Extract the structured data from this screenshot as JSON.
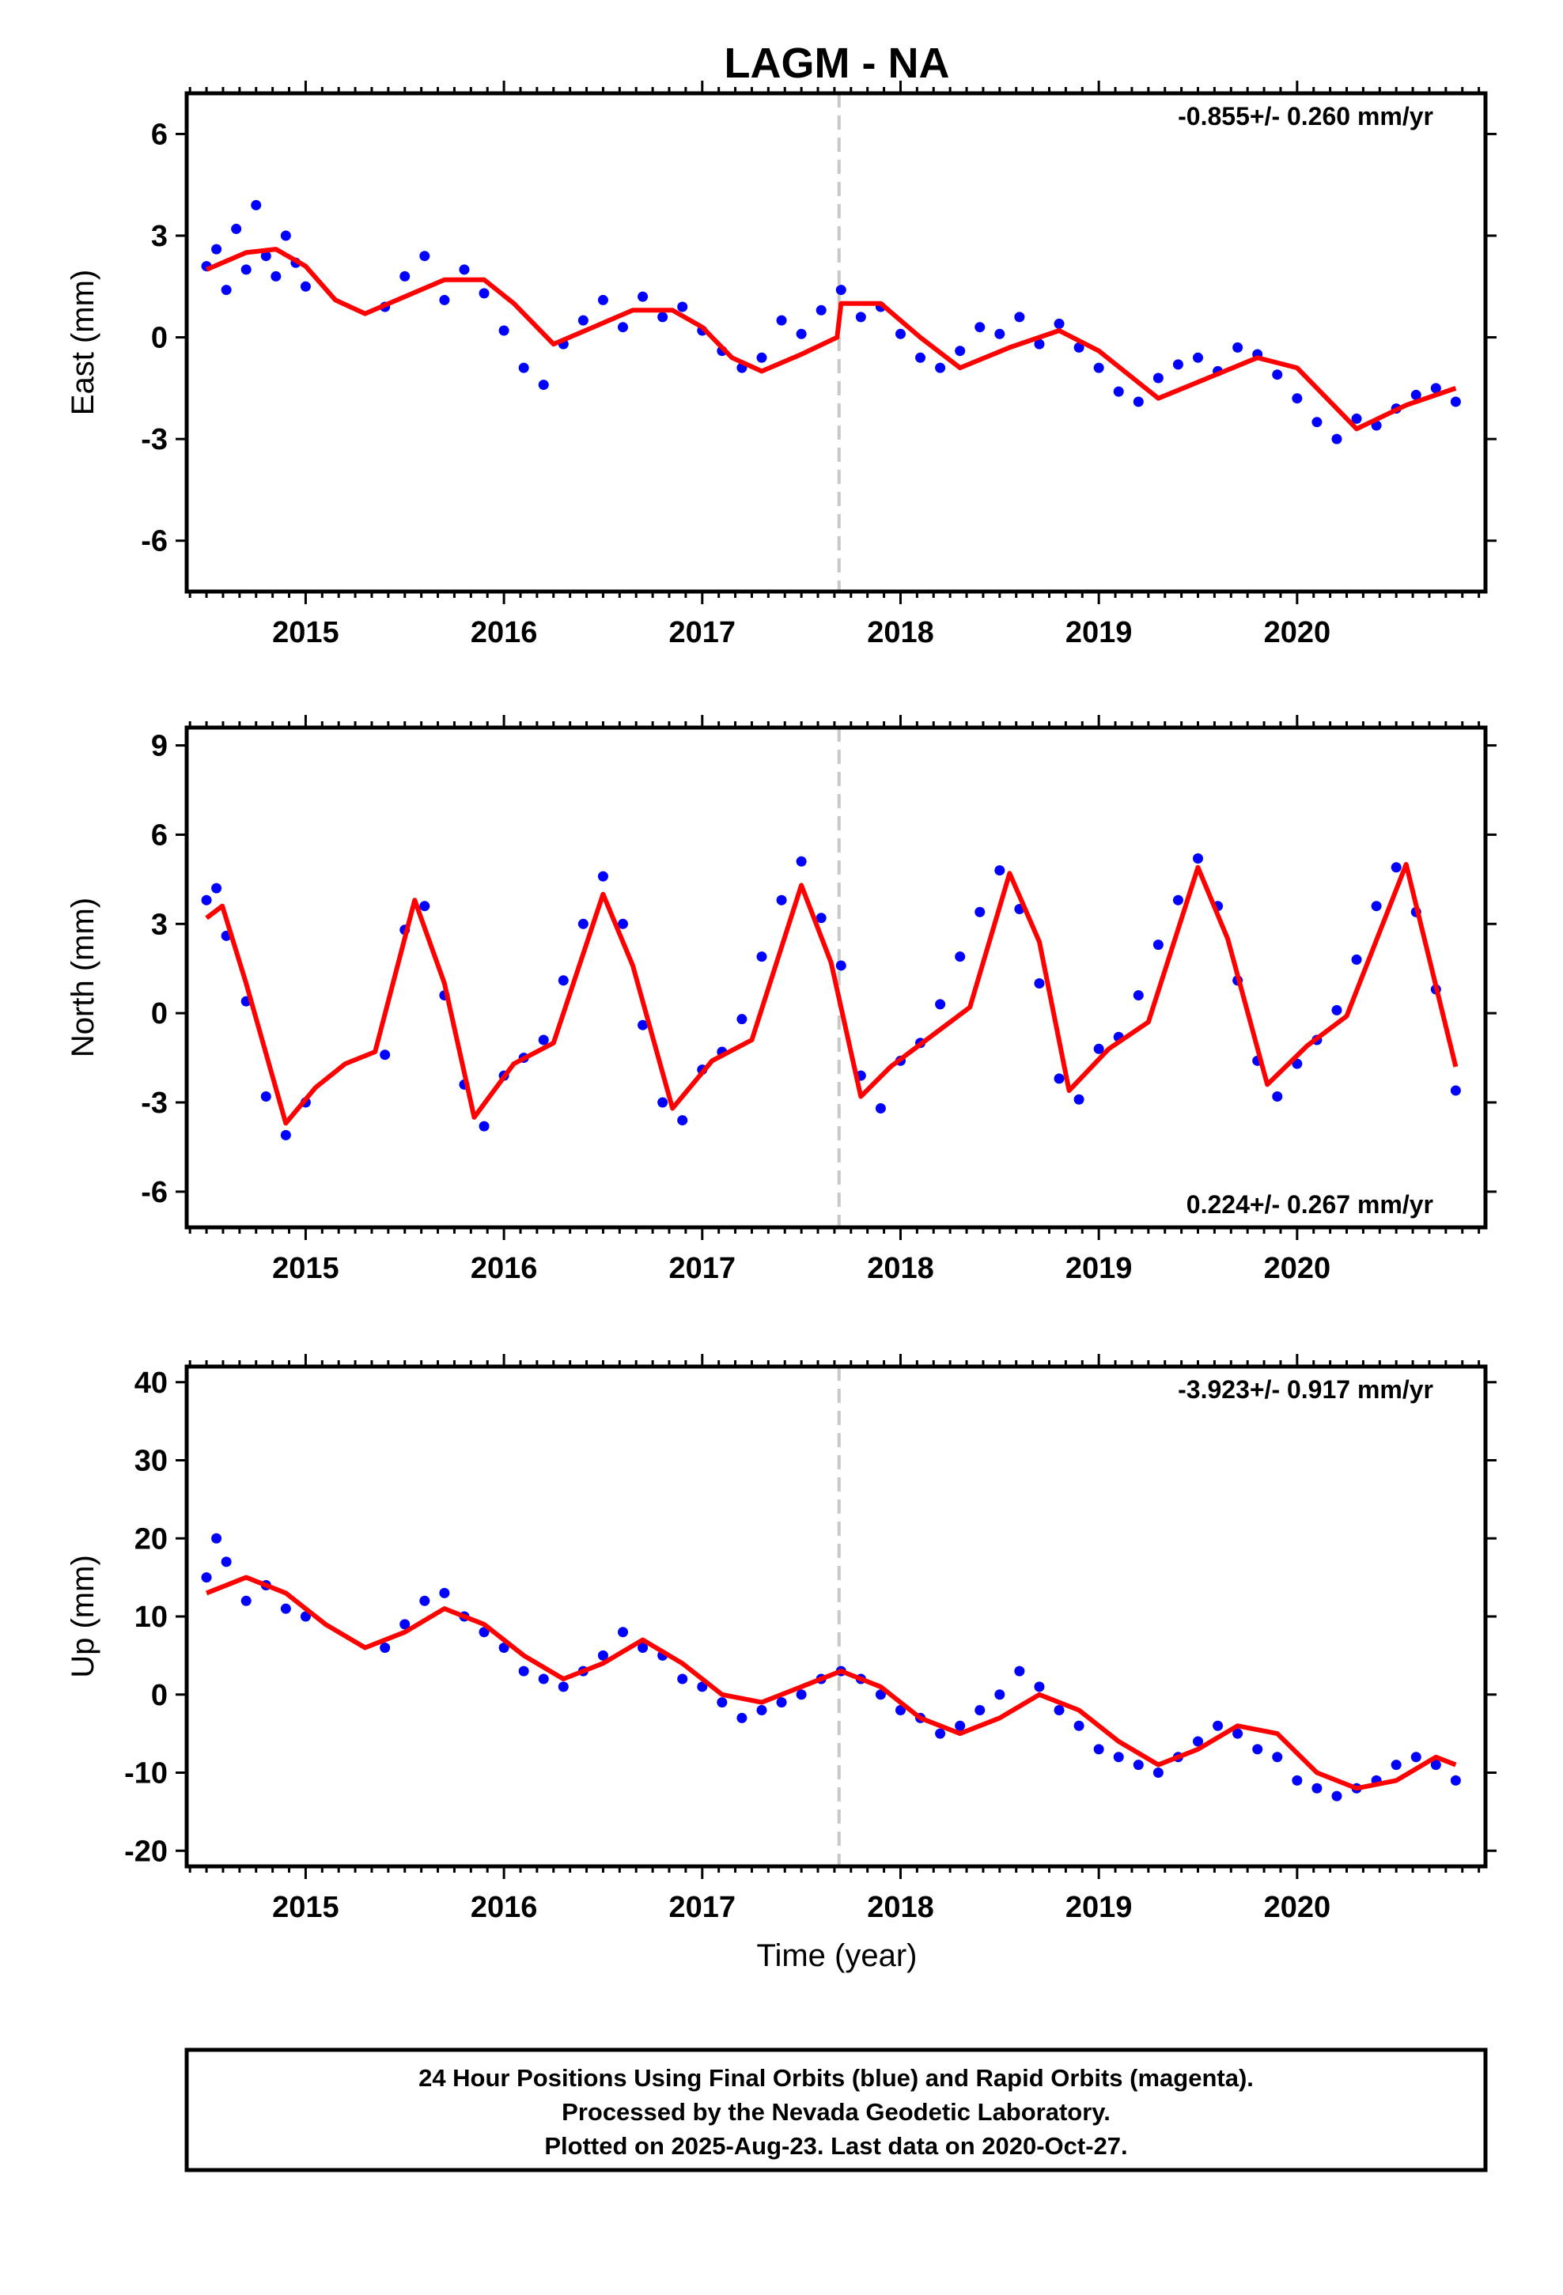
{
  "title": "LAGM - NA",
  "x_axis_label": "Time (year)",
  "footer": {
    "line1": "24 Hour Positions Using Final Orbits (blue) and Rapid Orbits (magenta).",
    "line2": "Processed by the Nevada Geodetic Laboratory.",
    "line3": "Plotted on 2025-Aug-23. Last data on 2020-Oct-27."
  },
  "colors": {
    "points": "#0000ff",
    "fit": "#ff0000",
    "equipment_change": "#c8c8c8",
    "frame": "#000000"
  },
  "chart_data": [
    {
      "type": "scatter",
      "component": "east",
      "ylabel": "East (mm)",
      "rate_label": "-0.855+/- 0.260 mm/yr",
      "xlim": [
        2014.4,
        2020.95
      ],
      "ylim": [
        -7.5,
        7.2
      ],
      "yticks": [
        -6,
        -3,
        0,
        3,
        6
      ],
      "xticks": [
        2015,
        2016,
        2017,
        2018,
        2019,
        2020
      ],
      "equipment_change_year": 2017.69,
      "series": [
        {
          "kind": "daily_positions",
          "color": "#0000ff",
          "x": [
            2014.5,
            2014.55,
            2014.6,
            2014.65,
            2014.7,
            2014.75,
            2014.8,
            2014.85,
            2014.9,
            2014.95,
            2015.0,
            2015.4,
            2015.5,
            2015.6,
            2015.7,
            2015.8,
            2015.9,
            2016.0,
            2016.1,
            2016.2,
            2016.3,
            2016.4,
            2016.5,
            2016.6,
            2016.7,
            2016.8,
            2016.9,
            2017.0,
            2017.1,
            2017.2,
            2017.3,
            2017.4,
            2017.5,
            2017.6,
            2017.7,
            2017.8,
            2017.9,
            2018.0,
            2018.1,
            2018.2,
            2018.3,
            2018.4,
            2018.5,
            2018.6,
            2018.7,
            2018.8,
            2018.9,
            2019.0,
            2019.1,
            2019.2,
            2019.3,
            2019.4,
            2019.5,
            2019.6,
            2019.7,
            2019.8,
            2019.9,
            2020.0,
            2020.1,
            2020.2,
            2020.3,
            2020.4,
            2020.5,
            2020.6,
            2020.7,
            2020.8
          ],
          "y": [
            2.1,
            2.6,
            1.4,
            3.2,
            2.0,
            3.9,
            2.4,
            1.8,
            3.0,
            2.2,
            1.5,
            0.9,
            1.8,
            2.4,
            1.1,
            2.0,
            1.3,
            0.2,
            -0.9,
            -1.4,
            -0.2,
            0.5,
            1.1,
            0.3,
            1.2,
            0.6,
            0.9,
            0.2,
            -0.4,
            -0.9,
            -0.6,
            0.5,
            0.1,
            0.8,
            1.4,
            0.6,
            0.9,
            0.1,
            -0.6,
            -0.9,
            -0.4,
            0.3,
            0.1,
            0.6,
            -0.2,
            0.4,
            -0.3,
            -0.9,
            -1.6,
            -1.9,
            -1.2,
            -0.8,
            -0.6,
            -1.0,
            -0.3,
            -0.5,
            -1.1,
            -1.8,
            -2.5,
            -3.0,
            -2.4,
            -2.6,
            -2.1,
            -1.7,
            -1.5,
            -1.9
          ]
        },
        {
          "kind": "model_fit",
          "color": "#ff0000",
          "x": [
            2014.5,
            2014.7,
            2014.85,
            2015.0,
            2015.15,
            2015.3,
            2015.5,
            2015.7,
            2015.9,
            2016.05,
            2016.25,
            2016.45,
            2016.65,
            2016.85,
            2017.0,
            2017.15,
            2017.3,
            2017.5,
            2017.68,
            2017.7,
            2017.9,
            2018.1,
            2018.3,
            2018.55,
            2018.8,
            2019.0,
            2019.3,
            2019.55,
            2019.8,
            2020.0,
            2020.3,
            2020.55,
            2020.8
          ],
          "y": [
            2.0,
            2.5,
            2.6,
            2.1,
            1.1,
            0.7,
            1.2,
            1.7,
            1.7,
            1.0,
            -0.2,
            0.3,
            0.8,
            0.8,
            0.3,
            -0.6,
            -1.0,
            -0.5,
            0.0,
            1.0,
            1.0,
            0.0,
            -0.9,
            -0.3,
            0.2,
            -0.4,
            -1.8,
            -1.2,
            -0.6,
            -0.9,
            -2.7,
            -2.0,
            -1.5
          ]
        }
      ]
    },
    {
      "type": "scatter",
      "component": "north",
      "ylabel": "North (mm)",
      "rate_label": "0.224+/- 0.267 mm/yr",
      "xlim": [
        2014.4,
        2020.95
      ],
      "ylim": [
        -7.2,
        9.6
      ],
      "yticks": [
        -6,
        -3,
        0,
        3,
        6,
        9
      ],
      "xticks": [
        2015,
        2016,
        2017,
        2018,
        2019,
        2020
      ],
      "equipment_change_year": 2017.69,
      "series": [
        {
          "kind": "daily_positions",
          "color": "#0000ff",
          "x": [
            2014.5,
            2014.55,
            2014.6,
            2014.7,
            2014.8,
            2014.9,
            2015.0,
            2015.4,
            2015.5,
            2015.6,
            2015.7,
            2015.8,
            2015.9,
            2016.0,
            2016.1,
            2016.2,
            2016.3,
            2016.4,
            2016.5,
            2016.6,
            2016.7,
            2016.8,
            2016.9,
            2017.0,
            2017.1,
            2017.2,
            2017.3,
            2017.4,
            2017.5,
            2017.6,
            2017.7,
            2017.8,
            2017.9,
            2018.0,
            2018.1,
            2018.2,
            2018.3,
            2018.4,
            2018.5,
            2018.6,
            2018.7,
            2018.8,
            2018.9,
            2019.0,
            2019.1,
            2019.2,
            2019.3,
            2019.4,
            2019.5,
            2019.6,
            2019.7,
            2019.8,
            2019.9,
            2020.0,
            2020.1,
            2020.2,
            2020.3,
            2020.4,
            2020.5,
            2020.6,
            2020.7,
            2020.8
          ],
          "y": [
            3.8,
            4.2,
            2.6,
            0.4,
            -2.8,
            -4.1,
            -3.0,
            -1.4,
            2.8,
            3.6,
            0.6,
            -2.4,
            -3.8,
            -2.1,
            -1.5,
            -0.9,
            1.1,
            3.0,
            4.6,
            3.0,
            -0.4,
            -3.0,
            -3.6,
            -1.9,
            -1.3,
            -0.2,
            1.9,
            3.8,
            5.1,
            3.2,
            1.6,
            -2.1,
            -3.2,
            -1.6,
            -1.0,
            0.3,
            1.9,
            3.4,
            4.8,
            3.5,
            1.0,
            -2.2,
            -2.9,
            -1.2,
            -0.8,
            0.6,
            2.3,
            3.8,
            5.2,
            3.6,
            1.1,
            -1.6,
            -2.8,
            -1.7,
            -0.9,
            0.1,
            1.8,
            3.6,
            4.9,
            3.4,
            0.8,
            -2.6
          ]
        },
        {
          "kind": "model_fit",
          "color": "#ff0000",
          "x": [
            2014.5,
            2014.58,
            2014.7,
            2014.9,
            2015.05,
            2015.2,
            2015.35,
            2015.55,
            2015.7,
            2015.85,
            2016.05,
            2016.25,
            2016.5,
            2016.65,
            2016.85,
            2017.05,
            2017.25,
            2017.5,
            2017.65,
            2017.8,
            2017.95,
            2018.15,
            2018.35,
            2018.55,
            2018.7,
            2018.85,
            2019.05,
            2019.25,
            2019.5,
            2019.65,
            2019.85,
            2020.05,
            2020.25,
            2020.55,
            2020.8
          ],
          "y": [
            3.2,
            3.6,
            1.0,
            -3.7,
            -2.5,
            -1.7,
            -1.3,
            3.8,
            1.0,
            -3.5,
            -1.7,
            -1.0,
            4.0,
            1.6,
            -3.2,
            -1.6,
            -0.9,
            4.3,
            1.7,
            -2.8,
            -1.8,
            -0.8,
            0.2,
            4.7,
            2.4,
            -2.6,
            -1.2,
            -0.3,
            4.9,
            2.5,
            -2.4,
            -1.1,
            -0.1,
            5.0,
            -1.8
          ]
        }
      ]
    },
    {
      "type": "scatter",
      "component": "up",
      "ylabel": "Up (mm)",
      "rate_label": "-3.923+/- 0.917 mm/yr",
      "xlim": [
        2014.4,
        2020.95
      ],
      "ylim": [
        -22,
        42
      ],
      "yticks": [
        -20,
        -10,
        0,
        10,
        20,
        30,
        40
      ],
      "xticks": [
        2015,
        2016,
        2017,
        2018,
        2019,
        2020
      ],
      "equipment_change_year": 2017.69,
      "series": [
        {
          "kind": "daily_positions",
          "color": "#0000ff",
          "x": [
            2014.5,
            2014.55,
            2014.6,
            2014.7,
            2014.8,
            2014.9,
            2015.0,
            2015.4,
            2015.5,
            2015.6,
            2015.7,
            2015.8,
            2015.9,
            2016.0,
            2016.1,
            2016.2,
            2016.3,
            2016.4,
            2016.5,
            2016.6,
            2016.7,
            2016.8,
            2016.9,
            2017.0,
            2017.1,
            2017.2,
            2017.3,
            2017.4,
            2017.5,
            2017.6,
            2017.7,
            2017.8,
            2017.9,
            2018.0,
            2018.1,
            2018.2,
            2018.3,
            2018.4,
            2018.5,
            2018.6,
            2018.7,
            2018.8,
            2018.9,
            2019.0,
            2019.1,
            2019.2,
            2019.3,
            2019.4,
            2019.5,
            2019.6,
            2019.7,
            2019.8,
            2019.9,
            2020.0,
            2020.1,
            2020.2,
            2020.3,
            2020.4,
            2020.5,
            2020.6,
            2020.7,
            2020.8
          ],
          "y": [
            15,
            20,
            17,
            12,
            14,
            11,
            10,
            6,
            9,
            12,
            13,
            10,
            8,
            6,
            3,
            2,
            1,
            3,
            5,
            8,
            6,
            5,
            2,
            1,
            -1,
            -3,
            -2,
            -1,
            0,
            2,
            3,
            2,
            0,
            -2,
            -3,
            -5,
            -4,
            -2,
            0,
            3,
            1,
            -2,
            -4,
            -7,
            -8,
            -9,
            -10,
            -8,
            -6,
            -4,
            -5,
            -7,
            -8,
            -11,
            -12,
            -13,
            -12,
            -11,
            -9,
            -8,
            -9,
            -11
          ]
        },
        {
          "kind": "model_fit",
          "color": "#ff0000",
          "x": [
            2014.5,
            2014.7,
            2014.9,
            2015.1,
            2015.3,
            2015.5,
            2015.7,
            2015.9,
            2016.1,
            2016.3,
            2016.5,
            2016.7,
            2016.9,
            2017.1,
            2017.3,
            2017.5,
            2017.7,
            2017.9,
            2018.1,
            2018.3,
            2018.5,
            2018.7,
            2018.9,
            2019.1,
            2019.3,
            2019.5,
            2019.7,
            2019.9,
            2020.1,
            2020.3,
            2020.5,
            2020.7,
            2020.8
          ],
          "y": [
            13,
            15,
            13,
            9,
            6,
            8,
            11,
            9,
            5,
            2,
            4,
            7,
            4,
            0,
            -1,
            1,
            3,
            1,
            -3,
            -5,
            -3,
            0,
            -2,
            -6,
            -9,
            -7,
            -4,
            -5,
            -10,
            -12,
            -11,
            -8,
            -9
          ]
        }
      ]
    }
  ]
}
